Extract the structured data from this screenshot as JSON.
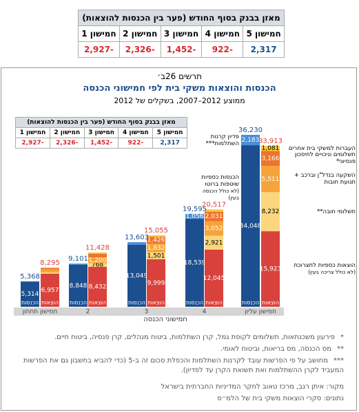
{
  "balance_table": {
    "title": "מאזן בבנק בסוף החודש (פער בין הכנסות להוצאות)",
    "columns": [
      "חמישון 5",
      "חמישון 4",
      "חמישון 3",
      "חמישון 2",
      "חמישון 1"
    ],
    "values": [
      "2,317",
      "-922",
      "-1,452",
      "-2,326",
      "-2,927"
    ]
  },
  "figure": {
    "label": "תרשים 26ב׳",
    "title": "הכנסות והוצאות משקי בית לפי חמישוני הכנסה",
    "subtitle": "ממוצע 2012–2007, בשקלים של 2012"
  },
  "chart_data": {
    "type": "stacked-bar-pairs",
    "x_title": "חמישוני הכנסה",
    "categories": [
      "חמישון תחתון",
      "2",
      "3",
      "4",
      "חמישון עליון"
    ],
    "stack_labels": {
      "income": "הכנסות",
      "expense": "הוצאות"
    },
    "income_totals": [
      5368,
      9101,
      13603,
      19595,
      36230
    ],
    "income_totals_labels": [
      "5,368",
      "9,101",
      "13,603",
      "19,595",
      "36,230"
    ],
    "income_totals_color": "#1c4f8f",
    "expense_totals": [
      8295,
      11428,
      15055,
      20517,
      33913
    ],
    "expense_totals_labels": [
      "8,295",
      "11,428",
      "15,055",
      "20,517",
      "33,913"
    ],
    "expense_totals_color": "#d9423c",
    "series": [
      {
        "name": "הכנסות כספיות שוטפות ברוטו",
        "note": "(לא כולל הכנסה בעין)",
        "stack": "income",
        "color": "#1c4f8f",
        "label_color": "#ffffff",
        "values": [
          5314,
          8848,
          13049,
          18539,
          34048
        ],
        "value_labels": [
          "5,314",
          "8,848",
          "13,049",
          "18,539",
          "34,048"
        ]
      },
      {
        "name": "פדיון קרנות השתלמות***",
        "stack": "income",
        "color": "#4a8fd8",
        "label_color": "#ffffff",
        "values": [
          54,
          253,
          554,
          1056,
          2183
        ],
        "value_labels": [
          null,
          null,
          null,
          "1,056",
          "2,183"
        ]
      },
      {
        "name": "הוצאות כספיות לתצרוכת",
        "note": "(לא כולל צריכה בעין)",
        "stack": "expense",
        "color": "#d9423c",
        "label_color": "#ffffff",
        "values": [
          6957,
          8432,
          9999,
          12045,
          15923
        ],
        "value_labels": [
          "6,957",
          "8,432",
          "9,999",
          "12,045",
          "15,923"
        ]
      },
      {
        "name": "תשלומי חובה**",
        "stack": "expense",
        "color": "#fbd67c",
        "label_color": "#000000",
        "values": [
          300,
          768,
          1501,
          2921,
          8232
        ],
        "value_labels": [
          null,
          "768",
          "1,501",
          "2,921",
          "8,232"
        ]
      },
      {
        "name": "השקעה בנדל\"ן וברכב + תנועת חובות",
        "stack": "expense",
        "color": "#f6a43a",
        "label_color": "#ffffff",
        "values": [
          600,
          1200,
          1832,
          3052,
          5511
        ],
        "value_labels": [
          null,
          "1,200",
          "1,832",
          "3,052",
          "5,511"
        ]
      },
      {
        "name": "תשלומים וניכויים לחיסכון פנסיוני*",
        "stack": "expense",
        "color": "#ec742c",
        "label_color": "#ffffff",
        "values": [
          300,
          800,
          1426,
          2031,
          3166
        ],
        "value_labels": [
          null,
          null,
          "1,426",
          "2,031",
          "3,166"
        ]
      },
      {
        "name": "העברות למשקי בית אחרים",
        "stack": "expense",
        "color": "#f9c935",
        "label_color": "#000000",
        "values": [
          138,
          228,
          297,
          468,
          1081
        ],
        "value_labels": [
          null,
          null,
          null,
          null,
          "1,081"
        ]
      }
    ]
  },
  "footnotes": [
    {
      "marker": "*",
      "text": "פירעון משכנתאות, תשלומים לקופת גמל, קרן השתלמות, ביטוח מנהלים, קרן פנסיה, ביטוח חיים."
    },
    {
      "marker": "**",
      "text": "מס הכנסה, מס בריאות, וביטוח לאומי."
    },
    {
      "marker": "***",
      "text": "מחושב על פי הפרשות עובד לקרנות השתלמות והכפלת סכום זה ב-5 (כדי להביא בחשבון גם את הפרשות המעביד לקרן ההשתלמות ואת תשואת הקרן עד לפדיון)."
    }
  ],
  "source": [
    "מקור: איתן רגב, מרכז טאוב לחקר המדיניות החברתית בישראל",
    "נתונים: סקרי הוצאות משקי בית של הלמ״ס"
  ]
}
